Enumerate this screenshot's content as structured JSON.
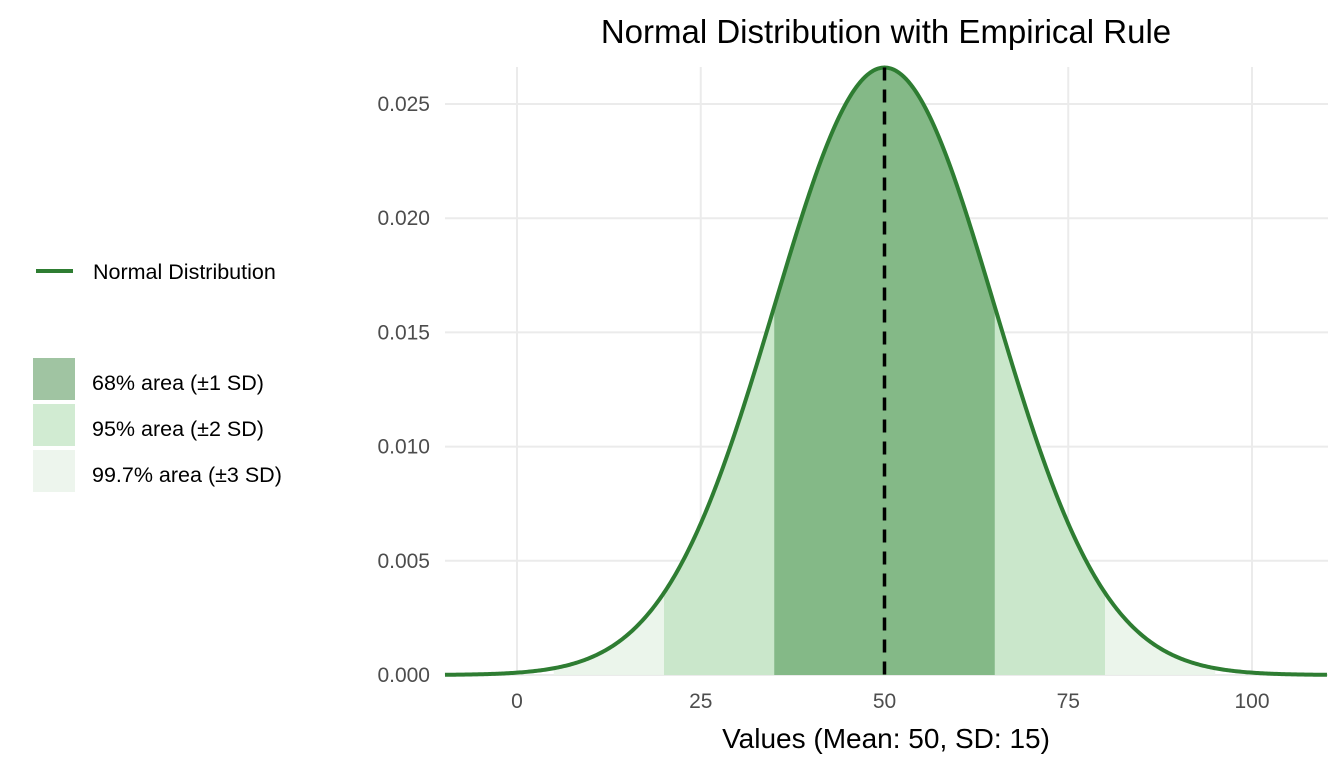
{
  "chart_data": {
    "type": "area",
    "title": "Normal Distribution with Empirical Rule",
    "xlabel": "Values (Mean: 50, SD: 15)",
    "ylabel": "",
    "mean": 50,
    "sd": 15,
    "xlim": [
      -9.8,
      110.2
    ],
    "ylim": [
      0,
      0.0266
    ],
    "grid": true,
    "x_ticks": [
      0,
      25,
      50,
      75,
      100
    ],
    "x_tick_labels": [
      "0",
      "25",
      "50",
      "75",
      "100"
    ],
    "y_ticks": [
      0,
      0.005,
      0.01,
      0.015,
      0.02,
      0.025
    ],
    "y_tick_labels": [
      "0.000",
      "0.005",
      "0.010",
      "0.015",
      "0.020",
      "0.025"
    ],
    "series": [
      {
        "name": "Normal Distribution",
        "kind": "line",
        "color": "#2E7D32"
      }
    ],
    "areas": [
      {
        "name": "99.7% area (±3 SD)",
        "from": 5,
        "to": 95,
        "color": "#EAF4EA"
      },
      {
        "name": "95% area (±2 SD)",
        "from": 20,
        "to": 80,
        "color": "#C8E6C9"
      },
      {
        "name": "68% area (±1 SD)",
        "from": 35,
        "to": 65,
        "color": "#81B784"
      }
    ],
    "mean_line": {
      "x": 50,
      "style": "dashed",
      "color": "#000000"
    },
    "legend": {
      "position": "left",
      "line_entry": "Normal Distribution",
      "fill_entries": [
        {
          "label": "68% area (±1 SD)",
          "color": "#A0C4A2"
        },
        {
          "label": "95% area (±2 SD)",
          "color": "#D1EBD2"
        },
        {
          "label": "99.7% area (±3 SD)",
          "color": "#EDF5ED"
        }
      ]
    }
  }
}
